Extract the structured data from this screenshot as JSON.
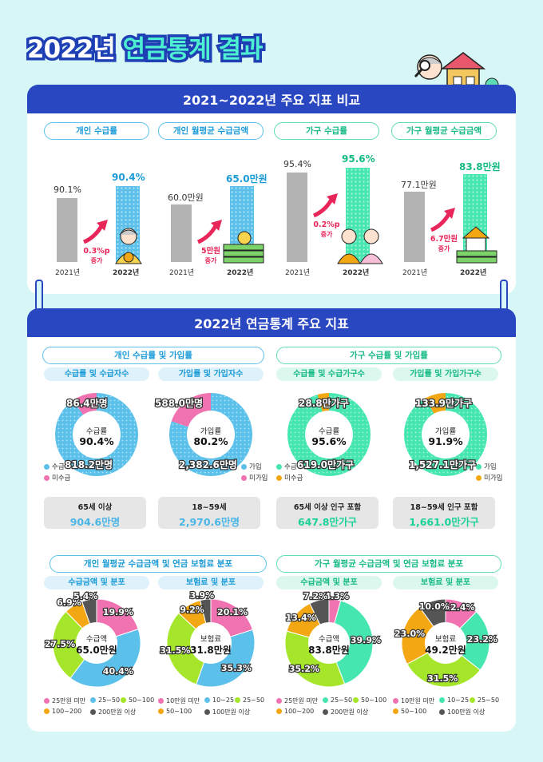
{
  "page": {
    "title_part1": "2022년",
    "title_part2": "연금통계 결과"
  },
  "section1": {
    "header": "2021~2022년 주요 지표 비교",
    "charts": [
      {
        "label": "개인 수급률",
        "y2021": "90.1%",
        "y2022": "90.4%",
        "increase": "0.3%p",
        "increase_word": "증가",
        "year_a": "2021년",
        "year_b": "2022년"
      },
      {
        "label": "개인 월평균 수급금액",
        "y2021": "60.0만원",
        "y2022": "65.0만원",
        "increase": "5만원",
        "increase_word": "증가",
        "year_a": "2021년",
        "year_b": "2022년"
      },
      {
        "label": "가구 수급률",
        "y2021": "95.4%",
        "y2022": "95.6%",
        "increase": "0.2%p",
        "increase_word": "증가",
        "year_a": "2021년",
        "year_b": "2022년"
      },
      {
        "label": "가구 월평균 수급금액",
        "y2021": "77.1만원",
        "y2022": "83.8만원",
        "increase": "6.7만원",
        "increase_word": "증가",
        "year_a": "2021년",
        "year_b": "2022년"
      }
    ]
  },
  "section2": {
    "header": "2022년 연금통계 주요 지표",
    "group_left": "개인 수급률 및 가입률",
    "group_right": "가구 수급률 및 가입률",
    "donuts": [
      {
        "sub": "수급률 및 수급자수",
        "center1": "수급률",
        "center2": "90.4%",
        "top": "86.4만명",
        "bottom": "818.2만명",
        "leg1": "수급",
        "leg2": "미수급",
        "box1": "65세 이상",
        "box2": "904.6만명"
      },
      {
        "sub": "가입률 및 가입자수",
        "center1": "가입률",
        "center2": "80.2%",
        "top": "588.0만명",
        "bottom": "2,382.6만명",
        "leg1": "가입",
        "leg2": "미가입",
        "box1": "18~59세",
        "box2": "2,970.6만명"
      },
      {
        "sub": "수급률 및 수급가구수",
        "center1": "수급률",
        "center2": "95.6%",
        "top": "28.8만가구",
        "bottom": "619.0만가구",
        "leg1": "수급",
        "leg2": "미수급",
        "box1": "65세 이상 인구 포함",
        "box2": "647.8만가구"
      },
      {
        "sub": "가입률 및 가입가구수",
        "center1": "가입률",
        "center2": "91.9%",
        "top": "133.9만가구",
        "bottom": "1,527.1만가구",
        "leg1": "가입",
        "leg2": "미가입",
        "box1": "18~59세 인구 포함",
        "box2": "1,661.0만가구"
      }
    ]
  },
  "section3": {
    "group_left": "개인 월평균 수급금액 및 연금 보험료 분포",
    "group_right": "가구 월평균 수급금액 및 연금 보험료 분포",
    "pies": [
      {
        "sub": "수급금액 및 분포",
        "center1": "수급액",
        "center2": "65.0만원",
        "labels": [
          "19.9%",
          "40.4%",
          "27.5%",
          "6.9%",
          "5.4%"
        ],
        "legend": [
          "25만원 미만",
          "25~50",
          "50~100",
          "100~200",
          "200만원 이상"
        ]
      },
      {
        "sub": "보험료 및 분포",
        "center1": "보험료",
        "center2": "31.8만원",
        "labels": [
          "20.1%",
          "35.3%",
          "31.5%",
          "9.2%",
          "3.9%"
        ],
        "legend": [
          "10만원 미만",
          "10~25",
          "25~50",
          "50~100",
          "100만원 이상"
        ]
      },
      {
        "sub": "수급금액 및 분포",
        "center1": "수급액",
        "center2": "83.8만원",
        "labels": [
          "4.3%",
          "39.9%",
          "35.2%",
          "13.4%",
          "7.2%"
        ],
        "legend": [
          "25만원 미만",
          "25~50",
          "50~100",
          "100~200",
          "200만원 이상"
        ]
      },
      {
        "sub": "보험료 및 분포",
        "center1": "보험료",
        "center2": "49.2만원",
        "labels": [
          "12.4%",
          "23.2%",
          "31.5%",
          "23.0%",
          "10.0%"
        ],
        "legend": [
          "10만원 미만",
          "10~25",
          "25~50",
          "50~100",
          "100만원 이상"
        ]
      }
    ]
  },
  "colors": {
    "blue": "#5cc1ea",
    "mint": "#46e6b0",
    "pink": "#f072b0",
    "lime": "#a6e62a",
    "orange": "#f3a712",
    "dark": "#555555",
    "gray": "#b3b3b3",
    "header": "#2a47c2",
    "red": "#e8265a"
  },
  "icons": [
    "magnifier-person-icon",
    "house-icon",
    "tree-icon",
    "elderly-woman-icon",
    "money-bag-icon",
    "coin-stack-icon",
    "check-coin-icon",
    "elderly-couple-icon",
    "house-on-coins-icon",
    "up-arrow-icon"
  ],
  "chart_data": [
    {
      "type": "bar",
      "title": "개인 수급률",
      "categories": [
        "2021년",
        "2022년"
      ],
      "values": [
        90.1,
        90.4
      ],
      "ylabel": "%"
    },
    {
      "type": "bar",
      "title": "개인 월평균 수급금액",
      "categories": [
        "2021년",
        "2022년"
      ],
      "values": [
        60.0,
        65.0
      ],
      "ylabel": "만원"
    },
    {
      "type": "bar",
      "title": "가구 수급률",
      "categories": [
        "2021년",
        "2022년"
      ],
      "values": [
        95.4,
        95.6
      ],
      "ylabel": "%"
    },
    {
      "type": "bar",
      "title": "가구 월평균 수급금액",
      "categories": [
        "2021년",
        "2022년"
      ],
      "values": [
        77.1,
        83.8
      ],
      "ylabel": "만원"
    },
    {
      "type": "pie",
      "title": "수급률 및 수급자수",
      "categories": [
        "수급",
        "미수급"
      ],
      "values": [
        818.2,
        86.4
      ]
    },
    {
      "type": "pie",
      "title": "가입률 및 가입자수",
      "categories": [
        "가입",
        "미가입"
      ],
      "values": [
        2382.6,
        588.0
      ]
    },
    {
      "type": "pie",
      "title": "수급률 및 수급가구수",
      "categories": [
        "수급",
        "미수급"
      ],
      "values": [
        619.0,
        28.8
      ]
    },
    {
      "type": "pie",
      "title": "가입률 및 가입가구수",
      "categories": [
        "가입",
        "미가입"
      ],
      "values": [
        1527.1,
        133.9
      ]
    },
    {
      "type": "pie",
      "title": "수급금액 및 분포",
      "categories": [
        "25만원 미만",
        "25~50",
        "50~100",
        "100~200",
        "200만원 이상"
      ],
      "values": [
        19.9,
        40.4,
        27.5,
        6.9,
        5.4
      ]
    },
    {
      "type": "pie",
      "title": "보험료 및 분포",
      "categories": [
        "10만원 미만",
        "10~25",
        "25~50",
        "50~100",
        "100만원 이상"
      ],
      "values": [
        20.1,
        35.3,
        31.5,
        9.2,
        3.9
      ]
    },
    {
      "type": "pie",
      "title": "수급금액 및 분포",
      "categories": [
        "25만원 미만",
        "25~50",
        "50~100",
        "100~200",
        "200만원 이상"
      ],
      "values": [
        4.3,
        39.9,
        35.2,
        13.4,
        7.2
      ]
    },
    {
      "type": "pie",
      "title": "보험료 및 분포",
      "categories": [
        "10만원 미만",
        "10~25",
        "25~50",
        "50~100",
        "100만원 이상"
      ],
      "values": [
        12.4,
        23.2,
        31.5,
        23.0,
        10.0
      ]
    }
  ]
}
